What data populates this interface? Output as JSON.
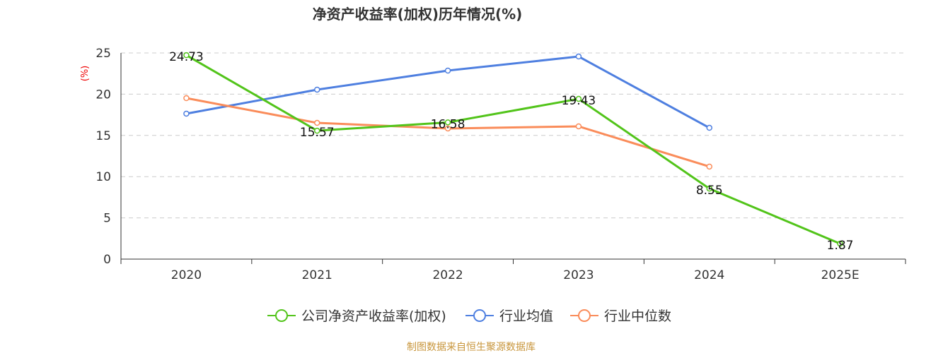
{
  "chart_data": {
    "type": "line",
    "title": "净资产收益率(加权)历年情况(%)",
    "ylabel": "(%)",
    "categories": [
      "2020",
      "2021",
      "2022",
      "2023",
      "2024",
      "2025E"
    ],
    "ylim": [
      0,
      25
    ],
    "yticks": [
      0,
      5,
      10,
      15,
      20,
      25
    ],
    "grid": true,
    "legend_position": "bottom",
    "series": [
      {
        "name": "公司净资产收益率(加权)",
        "color": "#52c41a",
        "values": [
          24.73,
          15.57,
          16.58,
          19.43,
          8.55,
          1.87
        ],
        "labels": [
          "24.73",
          "15.57",
          "16.58",
          "19.43",
          "8.55",
          "1.87"
        ]
      },
      {
        "name": "行业均值",
        "color": "#4e7fe0",
        "values": [
          17.64,
          20.55,
          22.86,
          24.57,
          15.92,
          null
        ]
      },
      {
        "name": "行业中位数",
        "color": "#fa8c5a",
        "values": [
          19.52,
          16.52,
          15.84,
          16.1,
          11.22,
          null
        ]
      }
    ]
  },
  "footer": "制图数据来自恒生聚源数据库"
}
